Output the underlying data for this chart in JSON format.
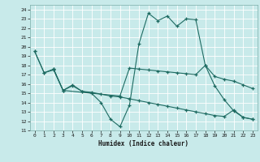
{
  "title": "",
  "xlabel": "Humidex (Indice chaleur)",
  "bg_color": "#c8eaea",
  "grid_color": "#b0d8d6",
  "line_color": "#1e6b62",
  "xlim": [
    -0.5,
    23.5
  ],
  "ylim": [
    11,
    24.5
  ],
  "yticks": [
    11,
    12,
    13,
    14,
    15,
    16,
    17,
    18,
    19,
    20,
    21,
    22,
    23,
    24
  ],
  "xticks": [
    0,
    1,
    2,
    3,
    4,
    5,
    6,
    7,
    8,
    9,
    10,
    11,
    12,
    13,
    14,
    15,
    16,
    17,
    18,
    19,
    20,
    21,
    22,
    23
  ],
  "line1_x": [
    0,
    1,
    2,
    3,
    4,
    5,
    6,
    7,
    8,
    9,
    10,
    11,
    12,
    13,
    14,
    15,
    16,
    17,
    18,
    19,
    20,
    21,
    22,
    23
  ],
  "line1_y": [
    19.5,
    17.2,
    17.5,
    15.3,
    15.8,
    15.2,
    15.0,
    14.0,
    12.2,
    11.4,
    13.7,
    20.3,
    23.6,
    22.8,
    23.3,
    22.2,
    23.0,
    22.9,
    18.0,
    15.8,
    14.3,
    13.1,
    12.4,
    12.2
  ],
  "line2_x": [
    0,
    1,
    2,
    3,
    9,
    10,
    11,
    12,
    13,
    14,
    15,
    16,
    17,
    18,
    19,
    20,
    21,
    22,
    23
  ],
  "line2_y": [
    19.5,
    17.2,
    17.6,
    15.3,
    14.7,
    17.7,
    17.6,
    17.5,
    17.4,
    17.3,
    17.2,
    17.1,
    17.0,
    18.0,
    16.8,
    16.5,
    16.3,
    15.9,
    15.5
  ],
  "line3_x": [
    2,
    3,
    4,
    5,
    6,
    7,
    8,
    9,
    10,
    11,
    12,
    13,
    14,
    15,
    16,
    17,
    18,
    19,
    20,
    21,
    22,
    23
  ],
  "line3_y": [
    17.6,
    15.3,
    15.9,
    15.2,
    15.1,
    14.9,
    14.7,
    14.6,
    14.4,
    14.2,
    14.0,
    13.8,
    13.6,
    13.4,
    13.2,
    13.0,
    12.8,
    12.6,
    12.5,
    13.2,
    12.4,
    12.2
  ]
}
